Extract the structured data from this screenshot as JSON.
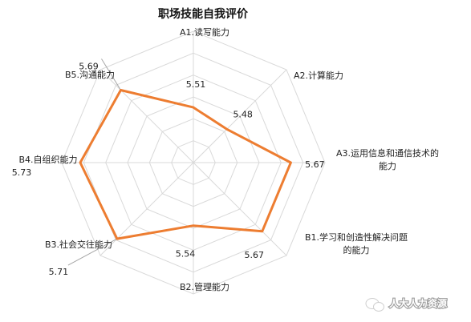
{
  "chart_data": {
    "type": "radar",
    "title": "职场技能自我评价",
    "categories": [
      [
        "A1.读写能力"
      ],
      [
        "A2.计算能力"
      ],
      [
        "A3.运用信息和通信技术的",
        "能力"
      ],
      [
        "B1.学习和创造性解决问题",
        "的能力"
      ],
      [
        "B2.管理能力"
      ],
      [
        "B3.社会交往能力"
      ],
      [
        "B4.自组织能力"
      ],
      [
        "B5.沟通能力"
      ]
    ],
    "values": [
      5.51,
      5.48,
      5.67,
      5.67,
      5.54,
      5.71,
      5.73,
      5.69
    ],
    "value_labels": [
      "5.51",
      "5.48",
      "5.67",
      "5.67",
      "5.54",
      "5.71",
      "5.73",
      "5.69"
    ],
    "rlim": [
      5.3,
      5.8
    ],
    "grid": true,
    "series_color": "#ED7D31"
  },
  "watermark": {
    "text": "人大人力资源",
    "icon": "wechat-icon"
  }
}
